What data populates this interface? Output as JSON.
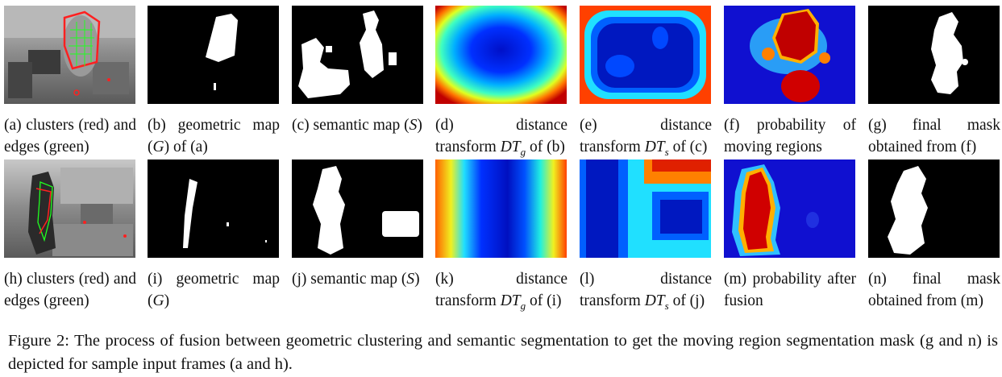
{
  "panels": {
    "a": {
      "label": "(a)",
      "text": "clusters (red) and edges (green)"
    },
    "b": {
      "label": "(b)",
      "text_pre": "geometric map (",
      "sym": "G",
      "text_post": ") of (a)"
    },
    "c": {
      "label": "(c)",
      "text_pre": "semantic map (",
      "sym": "S",
      "text_post": ")"
    },
    "d": {
      "label": "(d)",
      "text_pre": "distance transform ",
      "sym": "DT",
      "sub": "g",
      "text_post": " of (b)"
    },
    "e": {
      "label": "(e)",
      "text_pre": "distance transform ",
      "sym": "DT",
      "sub": "s",
      "text_post": " of (c)"
    },
    "f": {
      "label": "(f)",
      "text": "probability of moving regions"
    },
    "g": {
      "label": "(g)",
      "text": "final mask obtained from (f)"
    },
    "h": {
      "label": "(h)",
      "text": "clusters (red) and edges (green)"
    },
    "i": {
      "label": "(i)",
      "text_pre": "geometric map (",
      "sym": "G",
      "text_post": ")"
    },
    "j": {
      "label": "(j)",
      "text_pre": "semantic map (",
      "sym": "S",
      "text_post": ")"
    },
    "k": {
      "label": "(k)",
      "text_pre": "distance transform ",
      "sym": "DT",
      "sub": "g",
      "text_post": " of (i)"
    },
    "l": {
      "label": "(l)",
      "text_pre": "distance transform ",
      "sym": "DT",
      "sub": "s",
      "text_post": " of (j)"
    },
    "m": {
      "label": "(m)",
      "text": "probability after fusion"
    },
    "n": {
      "label": "(n)",
      "text": "final mask obtained from (m)"
    }
  },
  "figure_caption": "Figure 2: The process of fusion between geometric clustering and semantic segmentation to get the moving region segmentation mask (g and n) is depicted for sample input frames (a and h)."
}
